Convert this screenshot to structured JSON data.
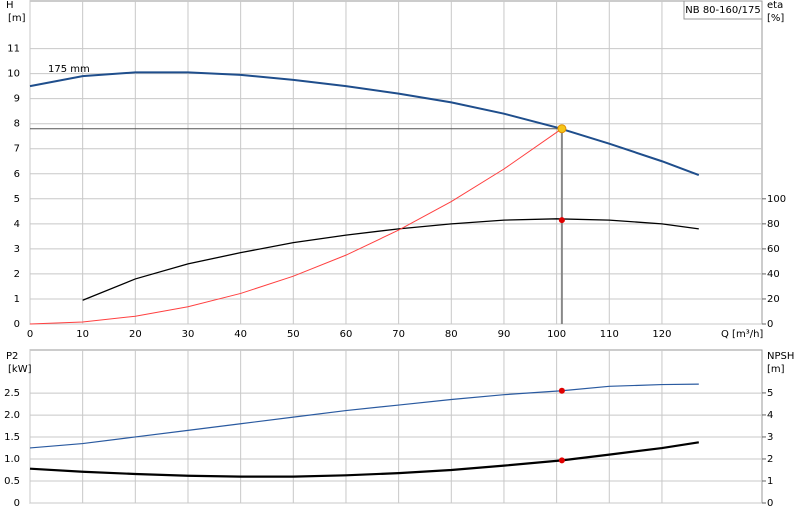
{
  "chart_data": [
    {
      "type": "line",
      "title": "NB 80-160/175",
      "annotation": "175 mm",
      "ylabel": [
        "H",
        "[m]"
      ],
      "y2label": [
        "eta",
        "[%]"
      ],
      "xlabel": "Q [m³/h]",
      "xlim": [
        0,
        139
      ],
      "xticks": [
        0,
        10,
        20,
        30,
        40,
        50,
        60,
        70,
        80,
        90,
        100,
        110,
        120
      ],
      "ylim": [
        0,
        12.9
      ],
      "yticks": [
        0,
        1,
        2,
        3,
        4,
        5,
        6,
        7,
        8,
        9,
        10,
        11
      ],
      "y2lim": [
        0,
        258
      ],
      "y2ticks": [
        0,
        20,
        40,
        60,
        80,
        100
      ],
      "grid": true,
      "series": [
        {
          "color": "#1f4e8c",
          "width": 2,
          "axis": "y",
          "x": [
            0,
            10,
            20,
            30,
            40,
            50,
            60,
            70,
            80,
            90,
            100,
            110,
            120,
            127
          ],
          "values": [
            9.5,
            9.9,
            10.05,
            10.05,
            9.95,
            9.75,
            9.5,
            9.2,
            8.85,
            8.4,
            7.85,
            7.2,
            6.5,
            5.95
          ]
        },
        {
          "color": "#000000",
          "width": 1.3,
          "axis": "y2",
          "x": [
            10,
            20,
            30,
            40,
            50,
            60,
            70,
            80,
            90,
            100,
            110,
            120,
            127
          ],
          "values": [
            19,
            36,
            48,
            57,
            65,
            71,
            76,
            80,
            83,
            84,
            83,
            80,
            76
          ]
        },
        {
          "color": "#ff4040",
          "width": 1,
          "axis": "y",
          "x": [
            0,
            10,
            20,
            30,
            40,
            50,
            60,
            70,
            80,
            90,
            101
          ],
          "values": [
            0,
            0.08,
            0.31,
            0.69,
            1.22,
            1.91,
            2.75,
            3.75,
            4.89,
            6.19,
            7.8
          ]
        }
      ],
      "points": [
        {
          "x": 101,
          "y": 7.8,
          "color": "#f5c518",
          "axis": "y",
          "guides": true
        },
        {
          "x": 101,
          "y": 83,
          "color": "#e00000",
          "axis": "y2"
        }
      ]
    },
    {
      "type": "line",
      "ylabel": [
        "P2",
        "[kW]"
      ],
      "y2label": [
        "NPSH",
        "[m]"
      ],
      "xlim": [
        0,
        139
      ],
      "ylim": [
        0,
        3.48
      ],
      "yticks": [
        0,
        0.5,
        {
          "value": 1,
          "label": "1.0"
        },
        1.5,
        {
          "value": 2,
          "label": "2.0"
        },
        2.5
      ],
      "y2lim": [
        0,
        6.95
      ],
      "y2ticks": [
        0,
        1,
        2,
        3,
        4,
        5
      ],
      "grid": true,
      "series": [
        {
          "color": "#2a5aa0",
          "width": 1.2,
          "axis": "y2",
          "x": [
            0,
            10,
            20,
            30,
            40,
            50,
            60,
            70,
            80,
            90,
            101,
            110,
            120,
            127
          ],
          "values": [
            2.5,
            2.7,
            3.0,
            3.3,
            3.6,
            3.9,
            4.2,
            4.45,
            4.7,
            4.92,
            5.1,
            5.3,
            5.38,
            5.4
          ]
        },
        {
          "color": "#000000",
          "width": 2.2,
          "axis": "y",
          "x": [
            0,
            10,
            20,
            30,
            40,
            50,
            60,
            70,
            80,
            90,
            101,
            110,
            120,
            127
          ],
          "values": [
            0.78,
            0.71,
            0.66,
            0.62,
            0.6,
            0.6,
            0.63,
            0.68,
            0.75,
            0.85,
            0.97,
            1.1,
            1.25,
            1.38
          ]
        }
      ],
      "points": [
        {
          "x": 101,
          "y": 0.97,
          "color": "#e00000",
          "axis": "y"
        },
        {
          "x": 101,
          "y": 5.1,
          "color": "#e00000",
          "axis": "y2"
        }
      ]
    }
  ]
}
